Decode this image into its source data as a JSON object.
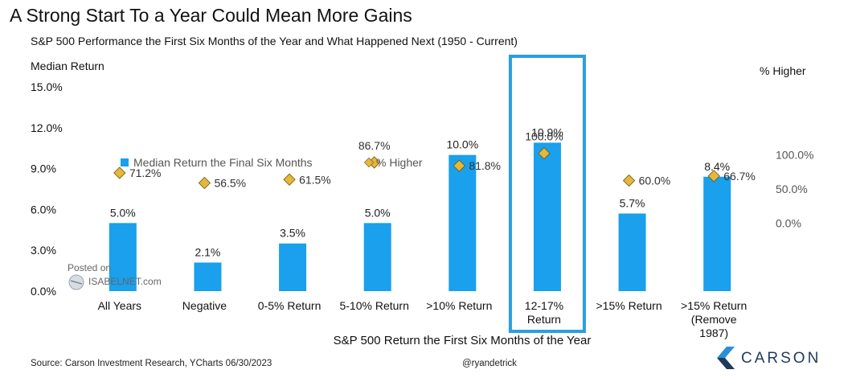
{
  "header": {
    "title": "A Strong Start To a Year Could Mean More Gains",
    "subtitle": "S&P 500 Performance the First Six Months of the Year and What Happened Next (1950 - Current)"
  },
  "footer": {
    "source": "Source: Carson Investment Research, YCharts 06/30/2023",
    "handle": "@ryandetrick",
    "logo": "CARSON"
  },
  "watermark": {
    "line1": "Posted on",
    "line2": "ISABELNET.com"
  },
  "colors": {
    "bar": "#1aa0ec",
    "marker": "#e5b83a",
    "highlight": "#2a9fe0",
    "text": "#1a1a1a"
  },
  "chart_data": {
    "type": "bar",
    "title": "A Strong Start To a Year Could Mean More Gains",
    "xlabel": "S&P 500 Return the First Six Months of the Year",
    "ylabel": "Median Return",
    "y2label": "% Higher",
    "ylim": [
      0,
      15
    ],
    "y2lim": [
      -100,
      200
    ],
    "yticks": [
      "0.0%",
      "3.0%",
      "6.0%",
      "9.0%",
      "12.0%",
      "15.0%"
    ],
    "y2ticks": [
      "0.0%",
      "50.0%",
      "100.0%"
    ],
    "categories": [
      [
        "All Years"
      ],
      [
        "Negative"
      ],
      [
        "0-5% Return"
      ],
      [
        "5-10% Return"
      ],
      [
        ">10% Return"
      ],
      [
        "12-17%",
        "Return"
      ],
      [
        ">15% Return"
      ],
      [
        ">15% Return",
        "(Remove",
        "1987)"
      ]
    ],
    "highlight_index": 5,
    "legend_position": "center",
    "series": [
      {
        "name": "Median Return the Final Six Months",
        "kind": "bar",
        "axis": "left",
        "values": [
          5.0,
          2.1,
          3.5,
          5.0,
          10.0,
          10.9,
          5.7,
          8.4
        ],
        "labels": [
          "5.0%",
          "2.1%",
          "3.5%",
          "5.0%",
          "10.0%",
          "10.9%",
          "5.7%",
          "8.4%"
        ]
      },
      {
        "name": "% Higher",
        "kind": "marker",
        "axis": "right",
        "values": [
          71.2,
          56.5,
          61.5,
          86.7,
          81.8,
          100.0,
          60.0,
          66.7
        ],
        "labels": [
          "71.2%",
          "56.5%",
          "61.5%",
          "86.7%",
          "81.8%",
          "100.0%",
          "60.0%",
          "66.7%"
        ]
      }
    ]
  }
}
